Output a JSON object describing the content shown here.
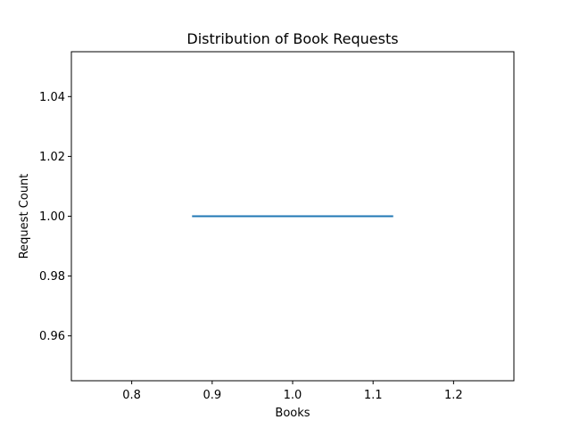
{
  "chart_data": {
    "type": "bar",
    "title": "Distribution of Book Requests",
    "xlabel": "Books",
    "ylabel": "Request Count",
    "xlim": [
      0.725,
      1.275
    ],
    "ylim": [
      0.945,
      1.055
    ],
    "xticks": [
      0.8,
      0.9,
      1.0,
      1.1,
      1.2
    ],
    "xtick_labels": [
      "0.8",
      "0.9",
      "1.0",
      "1.1",
      "1.2"
    ],
    "yticks": [
      0.96,
      0.98,
      1.0,
      1.02,
      1.04
    ],
    "ytick_labels": [
      "0.96",
      "0.98",
      "1.00",
      "1.02",
      "1.04"
    ],
    "grid": false,
    "bars": [
      {
        "x": 1.0,
        "width": 0.25,
        "value": 1.0
      }
    ],
    "colors": {
      "bar": "#1f77b4",
      "axes": "#000000"
    }
  }
}
